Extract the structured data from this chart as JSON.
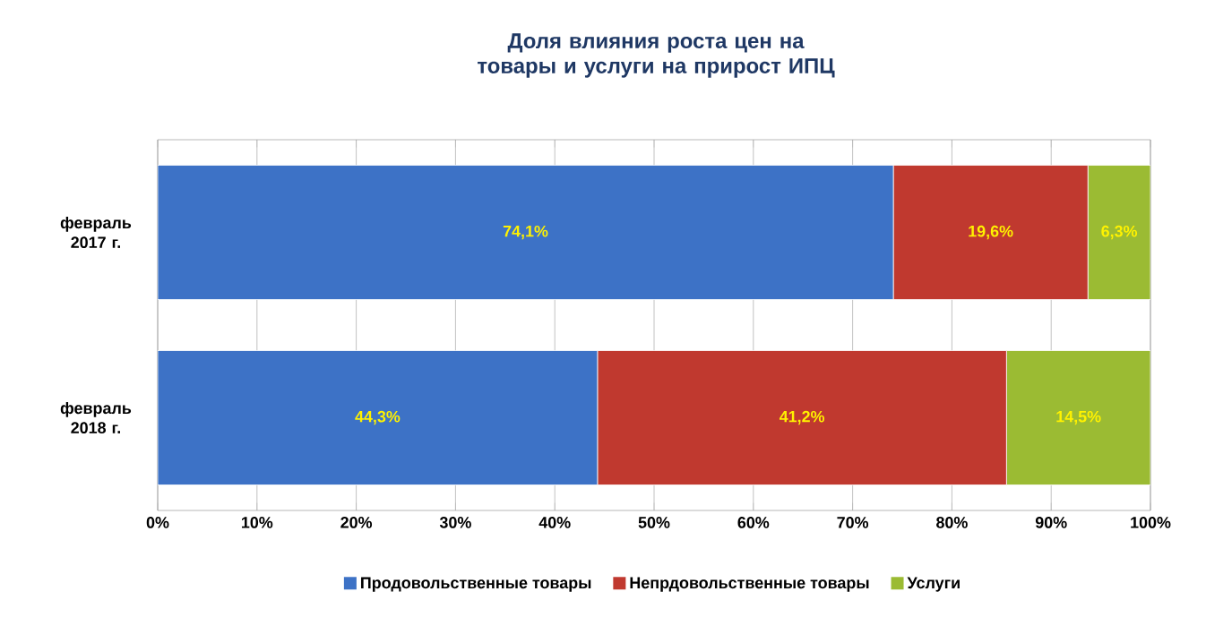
{
  "chart_data": {
    "type": "bar",
    "orientation": "horizontal",
    "stacked": true,
    "title": "Доля влияния роста цен на товары и услуги на прирост ИПЦ",
    "categories": [
      "февраль 2017 г.",
      "февраль 2018 г."
    ],
    "series": [
      {
        "name": "Продовольственные товары",
        "color": "#3d72c6",
        "values": [
          74.1,
          44.3
        ],
        "value_labels": [
          "74,1%",
          "44,3%"
        ]
      },
      {
        "name": "Непрдовольственные товары",
        "color": "#c0392f",
        "values": [
          19.6,
          41.2
        ],
        "value_labels": [
          "19,6%",
          "41,2%"
        ]
      },
      {
        "name": "Услуги",
        "color": "#9bbb33",
        "values": [
          6.3,
          14.5
        ],
        "value_labels": [
          "6,3%",
          "14,5%"
        ]
      }
    ],
    "xlim": [
      0,
      100
    ],
    "xticks": [
      {
        "value": 0,
        "label": "0%"
      },
      {
        "value": 10,
        "label": "10%"
      },
      {
        "value": 20,
        "label": "20%"
      },
      {
        "value": 30,
        "label": "30%"
      },
      {
        "value": 40,
        "label": "40%"
      },
      {
        "value": 50,
        "label": "50%"
      },
      {
        "value": 60,
        "label": "60%"
      },
      {
        "value": 70,
        "label": "70%"
      },
      {
        "value": 80,
        "label": "80%"
      },
      {
        "value": 90,
        "label": "90%"
      },
      {
        "value": 100,
        "label": "100%"
      }
    ],
    "grid": "x",
    "legend": "bottom"
  }
}
